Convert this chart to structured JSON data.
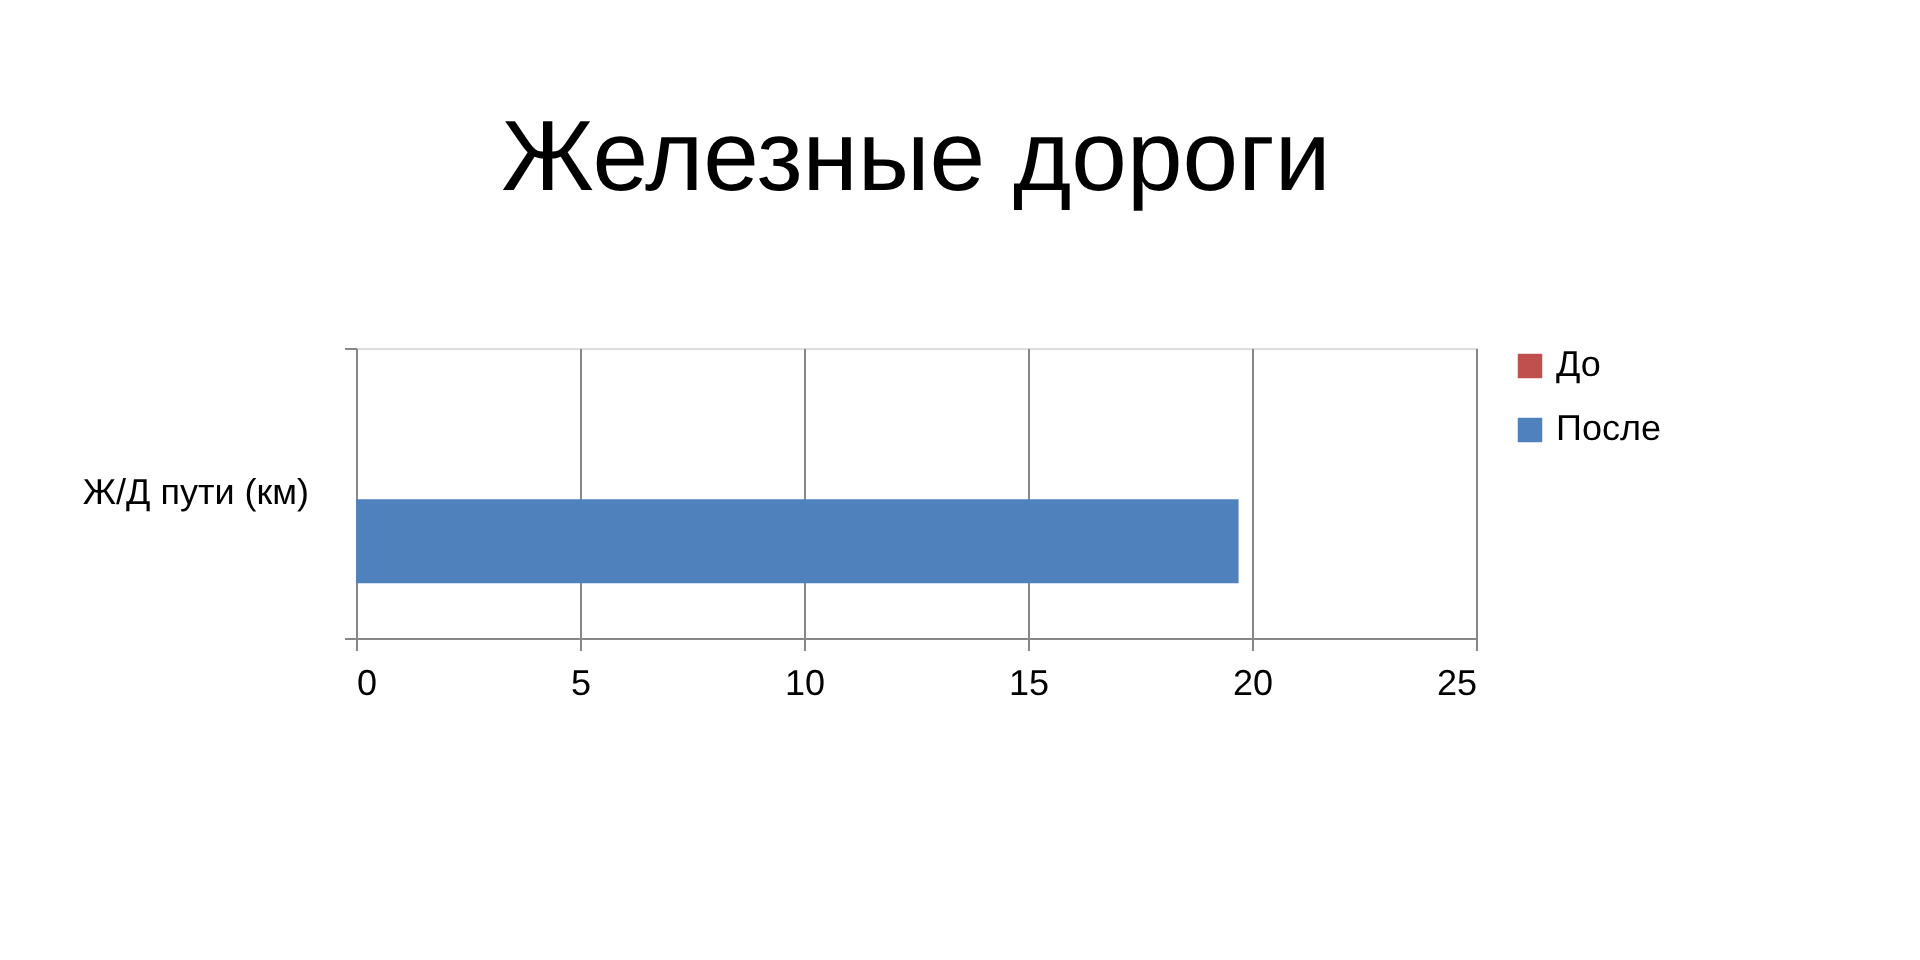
{
  "chart_data": {
    "type": "bar",
    "orientation": "horizontal",
    "title": "Железные дороги",
    "categories": [
      "Ж/Д пути (км)"
    ],
    "series": [
      {
        "name": "До",
        "color": "#c0504d",
        "values": [
          0
        ]
      },
      {
        "name": "После",
        "color": "#4f81bd",
        "values": [
          19.7
        ]
      }
    ],
    "xlim": [
      0,
      25
    ],
    "xticks": [
      0,
      5,
      10,
      15,
      20,
      25
    ],
    "grid": "x",
    "legend": "right"
  }
}
